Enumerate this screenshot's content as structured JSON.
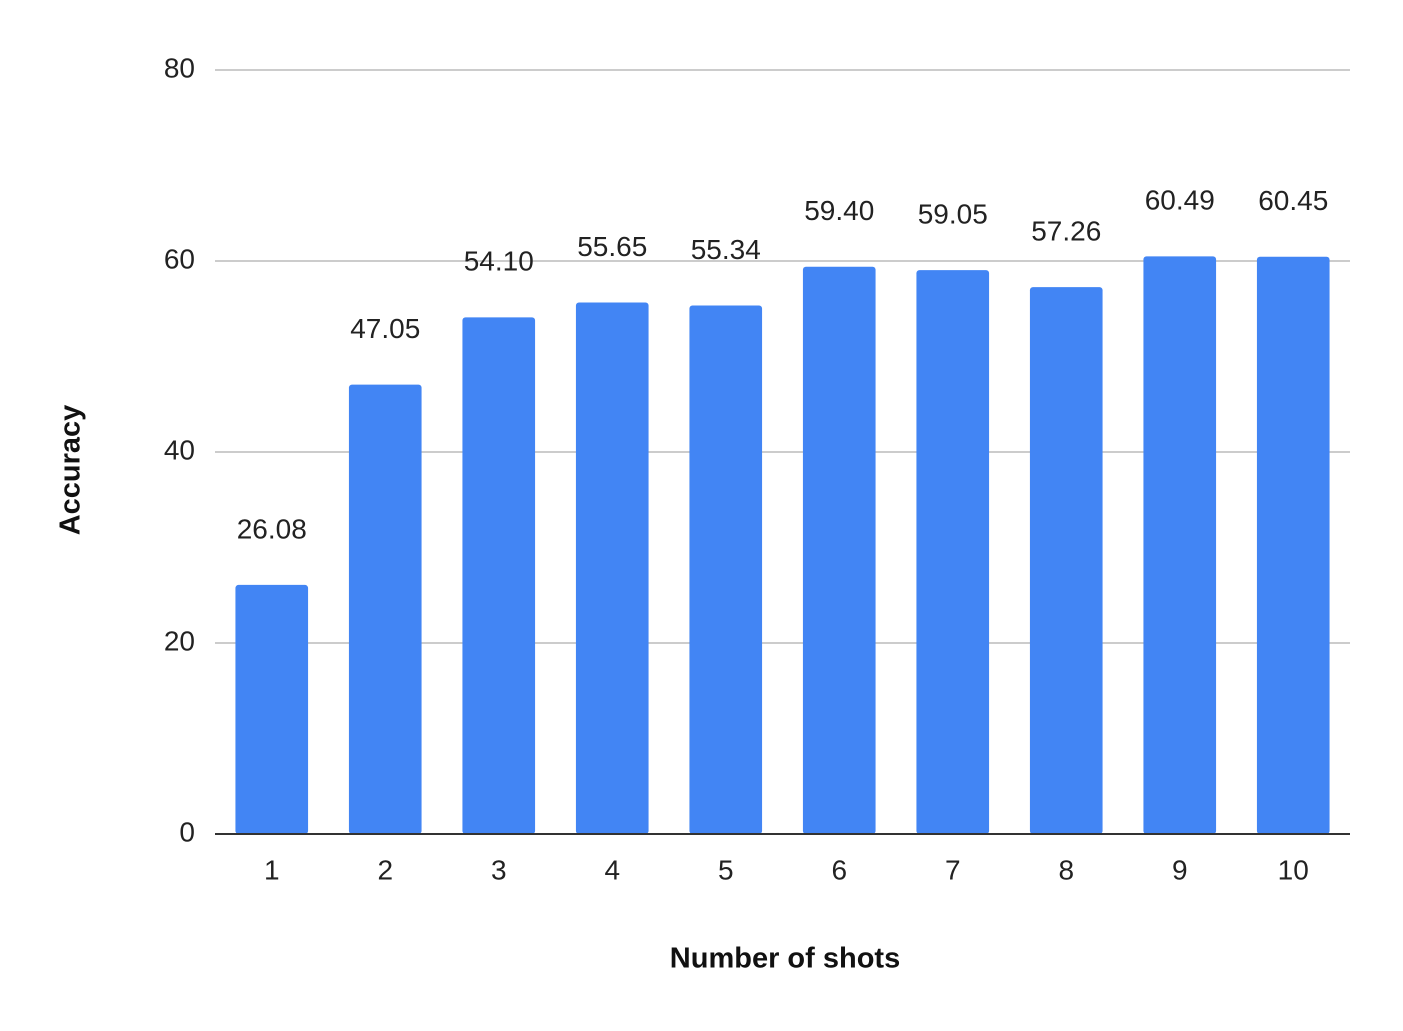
{
  "chart_data": {
    "type": "bar",
    "x_label": "Number of shots",
    "y_label": "Accuracy",
    "categories": [
      "1",
      "2",
      "3",
      "4",
      "5",
      "6",
      "7",
      "8",
      "9",
      "10"
    ],
    "values": [
      26.08,
      47.05,
      54.1,
      55.65,
      55.34,
      59.4,
      59.05,
      57.26,
      60.49,
      60.45
    ],
    "value_labels": [
      "26.08",
      "47.05",
      "54.10",
      "55.65",
      "55.34",
      "59.40",
      "59.05",
      "57.26",
      "60.49",
      "60.45"
    ],
    "color": "#4285f4",
    "ylim": [
      0,
      80
    ],
    "yticks": [
      0,
      20,
      40,
      60,
      80
    ],
    "grid": true
  }
}
